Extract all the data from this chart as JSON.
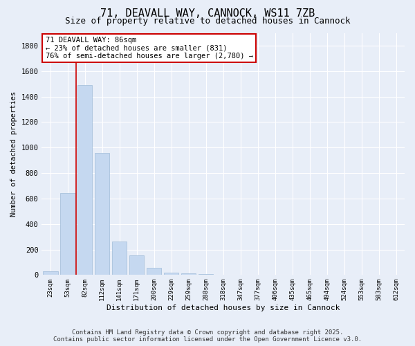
{
  "title": "71, DEAVALL WAY, CANNOCK, WS11 7ZB",
  "subtitle": "Size of property relative to detached houses in Cannock",
  "xlabel": "Distribution of detached houses by size in Cannock",
  "ylabel": "Number of detached properties",
  "categories": [
    "23sqm",
    "53sqm",
    "82sqm",
    "112sqm",
    "141sqm",
    "171sqm",
    "200sqm",
    "229sqm",
    "259sqm",
    "288sqm",
    "318sqm",
    "347sqm",
    "377sqm",
    "406sqm",
    "435sqm",
    "465sqm",
    "494sqm",
    "524sqm",
    "553sqm",
    "583sqm",
    "612sqm"
  ],
  "values": [
    30,
    640,
    1490,
    960,
    265,
    155,
    55,
    20,
    10,
    5,
    3,
    2,
    1,
    1,
    0,
    0,
    0,
    0,
    0,
    0,
    0
  ],
  "bar_color": "#c5d8f0",
  "bar_edge_color": "#a0bcd8",
  "vline_color": "#cc0000",
  "vline_pos": 1.5,
  "annotation_text": "71 DEAVALL WAY: 86sqm\n← 23% of detached houses are smaller (831)\n76% of semi-detached houses are larger (2,780) →",
  "annotation_box_color": "#ffffff",
  "annotation_box_edge_color": "#cc0000",
  "ylim": [
    0,
    1900
  ],
  "yticks": [
    0,
    200,
    400,
    600,
    800,
    1000,
    1200,
    1400,
    1600,
    1800
  ],
  "footer_line1": "Contains HM Land Registry data © Crown copyright and database right 2025.",
  "footer_line2": "Contains public sector information licensed under the Open Government Licence v3.0.",
  "bg_color": "#e8eef8",
  "grid_color": "#ffffff",
  "title_fontsize": 11,
  "subtitle_fontsize": 9,
  "annotation_fontsize": 7.5,
  "footer_fontsize": 6.5,
  "ylabel_fontsize": 7.5,
  "xlabel_fontsize": 8,
  "ytick_fontsize": 7.5,
  "xtick_fontsize": 6.5
}
